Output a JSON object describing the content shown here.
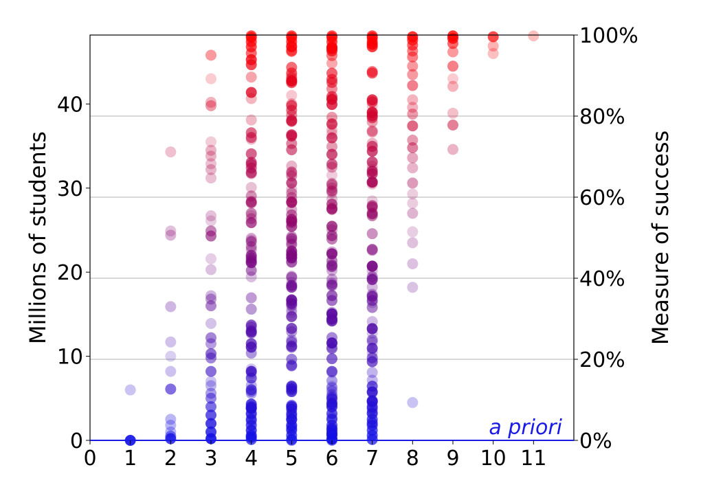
{
  "chart_data": {
    "type": "scatter",
    "title": "",
    "xlabel": "",
    "ylabel": "Millions of students",
    "y2label": "Measure of success",
    "annotation": "a priori",
    "xlim": [
      0,
      12
    ],
    "ylim": [
      0,
      48.2
    ],
    "y2lim": [
      0,
      100
    ],
    "x_ticks": [
      "0",
      "1",
      "2",
      "3",
      "4",
      "5",
      "6",
      "7",
      "8",
      "9",
      "10",
      "11"
    ],
    "y_ticks": [
      "0",
      "10",
      "20",
      "30",
      "40"
    ],
    "y2_ticks": [
      "0%",
      "20%",
      "40%",
      "60%",
      "80%",
      "100%"
    ],
    "grid": "horizontal lines at right-axis ticks",
    "color_scale": {
      "low": "#1010e8",
      "high": "#ff0000",
      "meaning": "color encodes measure of success (blue = low, red = high)"
    },
    "points": [
      {
        "x": 1,
        "y": 0.0,
        "a": 0.9
      },
      {
        "x": 1,
        "y": 6.0,
        "a": 0.25
      },
      {
        "x": 2,
        "y": 0.2,
        "a": 0.8
      },
      {
        "x": 2,
        "y": 0.5,
        "a": 0.5
      },
      {
        "x": 2,
        "y": 1.0,
        "a": 0.3
      },
      {
        "x": 2,
        "y": 1.8,
        "a": 0.3
      },
      {
        "x": 2,
        "y": 2.5,
        "a": 0.3
      },
      {
        "x": 2,
        "y": 6.1,
        "a": 0.6
      },
      {
        "x": 2,
        "y": 8.2,
        "a": 0.25
      },
      {
        "x": 2,
        "y": 10.0,
        "a": 0.2
      },
      {
        "x": 2,
        "y": 11.7,
        "a": 0.25
      },
      {
        "x": 2,
        "y": 15.9,
        "a": 0.3
      },
      {
        "x": 2,
        "y": 24.4,
        "a": 0.3
      },
      {
        "x": 2,
        "y": 24.9,
        "a": 0.25
      },
      {
        "x": 2,
        "y": 34.3,
        "a": 0.25
      },
      {
        "x": 3,
        "y": 0.2,
        "a": 0.9
      },
      {
        "x": 3,
        "y": 1.0,
        "a": 0.8
      },
      {
        "x": 3,
        "y": 2.0,
        "a": 0.8
      },
      {
        "x": 3,
        "y": 3.0,
        "a": 0.7
      },
      {
        "x": 3,
        "y": 4.0,
        "a": 0.6
      },
      {
        "x": 3,
        "y": 5.0,
        "a": 0.5
      },
      {
        "x": 3,
        "y": 5.6,
        "a": 0.4
      },
      {
        "x": 3,
        "y": 6.5,
        "a": 0.3
      },
      {
        "x": 3,
        "y": 7.0,
        "a": 0.25
      },
      {
        "x": 3,
        "y": 8.2,
        "a": 0.6
      },
      {
        "x": 3,
        "y": 9.8,
        "a": 0.5
      },
      {
        "x": 3,
        "y": 10.3,
        "a": 0.6
      },
      {
        "x": 3,
        "y": 11.5,
        "a": 0.4
      },
      {
        "x": 3,
        "y": 12.2,
        "a": 0.5
      },
      {
        "x": 3,
        "y": 13.9,
        "a": 0.25
      },
      {
        "x": 3,
        "y": 16.0,
        "a": 0.5
      },
      {
        "x": 3,
        "y": 16.8,
        "a": 0.4
      },
      {
        "x": 3,
        "y": 17.2,
        "a": 0.3
      },
      {
        "x": 3,
        "y": 20.3,
        "a": 0.25
      },
      {
        "x": 3,
        "y": 21.6,
        "a": 0.2
      },
      {
        "x": 3,
        "y": 24.3,
        "a": 0.6
      },
      {
        "x": 3,
        "y": 24.9,
        "a": 0.5
      },
      {
        "x": 3,
        "y": 26.1,
        "a": 0.2
      },
      {
        "x": 3,
        "y": 26.7,
        "a": 0.25
      },
      {
        "x": 3,
        "y": 31.2,
        "a": 0.25
      },
      {
        "x": 3,
        "y": 32.2,
        "a": 0.3
      },
      {
        "x": 3,
        "y": 32.9,
        "a": 0.25
      },
      {
        "x": 3,
        "y": 33.8,
        "a": 0.3
      },
      {
        "x": 3,
        "y": 34.5,
        "a": 0.3
      },
      {
        "x": 3,
        "y": 35.5,
        "a": 0.2
      },
      {
        "x": 3,
        "y": 39.8,
        "a": 0.4
      },
      {
        "x": 3,
        "y": 40.2,
        "a": 0.3
      },
      {
        "x": 3,
        "y": 43.0,
        "a": 0.2
      },
      {
        "x": 3,
        "y": 45.8,
        "a": 0.4
      },
      {
        "x": 8,
        "y": 4.5,
        "a": 0.25
      },
      {
        "x": 8,
        "y": 18.2,
        "a": 0.25
      },
      {
        "x": 8,
        "y": 21.0,
        "a": 0.25
      },
      {
        "x": 8,
        "y": 23.5,
        "a": 0.25
      },
      {
        "x": 8,
        "y": 24.8,
        "a": 0.2
      },
      {
        "x": 8,
        "y": 27.0,
        "a": 0.3
      },
      {
        "x": 8,
        "y": 28.2,
        "a": 0.2
      },
      {
        "x": 8,
        "y": 29.3,
        "a": 0.2
      },
      {
        "x": 8,
        "y": 30.6,
        "a": 0.4
      },
      {
        "x": 8,
        "y": 32.4,
        "a": 0.3
      },
      {
        "x": 8,
        "y": 33.6,
        "a": 0.35
      },
      {
        "x": 8,
        "y": 34.8,
        "a": 0.5
      },
      {
        "x": 8,
        "y": 35.7,
        "a": 0.4
      },
      {
        "x": 8,
        "y": 37.4,
        "a": 0.6
      },
      {
        "x": 8,
        "y": 38.8,
        "a": 0.4
      },
      {
        "x": 8,
        "y": 39.6,
        "a": 0.3
      },
      {
        "x": 8,
        "y": 40.5,
        "a": 0.3
      },
      {
        "x": 8,
        "y": 42.2,
        "a": 0.5
      },
      {
        "x": 8,
        "y": 43.5,
        "a": 0.4
      },
      {
        "x": 8,
        "y": 44.5,
        "a": 0.4
      },
      {
        "x": 8,
        "y": 45.6,
        "a": 0.5
      },
      {
        "x": 8,
        "y": 46.3,
        "a": 0.5
      },
      {
        "x": 8,
        "y": 47.0,
        "a": 0.6
      },
      {
        "x": 8,
        "y": 47.6,
        "a": 0.7
      },
      {
        "x": 8,
        "y": 48.0,
        "a": 0.8
      },
      {
        "x": 9,
        "y": 34.6,
        "a": 0.3
      },
      {
        "x": 9,
        "y": 37.5,
        "a": 0.5
      },
      {
        "x": 9,
        "y": 38.9,
        "a": 0.25
      },
      {
        "x": 9,
        "y": 42.1,
        "a": 0.3
      },
      {
        "x": 9,
        "y": 43.0,
        "a": 0.2
      },
      {
        "x": 9,
        "y": 44.5,
        "a": 0.5
      },
      {
        "x": 9,
        "y": 46.2,
        "a": 0.4
      },
      {
        "x": 9,
        "y": 47.2,
        "a": 0.6
      },
      {
        "x": 9,
        "y": 47.8,
        "a": 0.8
      },
      {
        "x": 9,
        "y": 48.1,
        "a": 0.8
      },
      {
        "x": 10,
        "y": 46.0,
        "a": 0.25
      },
      {
        "x": 10,
        "y": 46.9,
        "a": 0.3
      },
      {
        "x": 10,
        "y": 48.0,
        "a": 0.7
      },
      {
        "x": 11,
        "y": 48.1,
        "a": 0.25
      }
    ],
    "dense_columns": [
      {
        "x": 4,
        "y_min": 0,
        "y_max": 48.2,
        "count": 70
      },
      {
        "x": 5,
        "y_min": 0,
        "y_max": 48.2,
        "count": 95
      },
      {
        "x": 6,
        "y_min": 0,
        "y_max": 48.2,
        "count": 90
      },
      {
        "x": 7,
        "y_min": 0,
        "y_max": 48.2,
        "count": 75
      }
    ]
  }
}
